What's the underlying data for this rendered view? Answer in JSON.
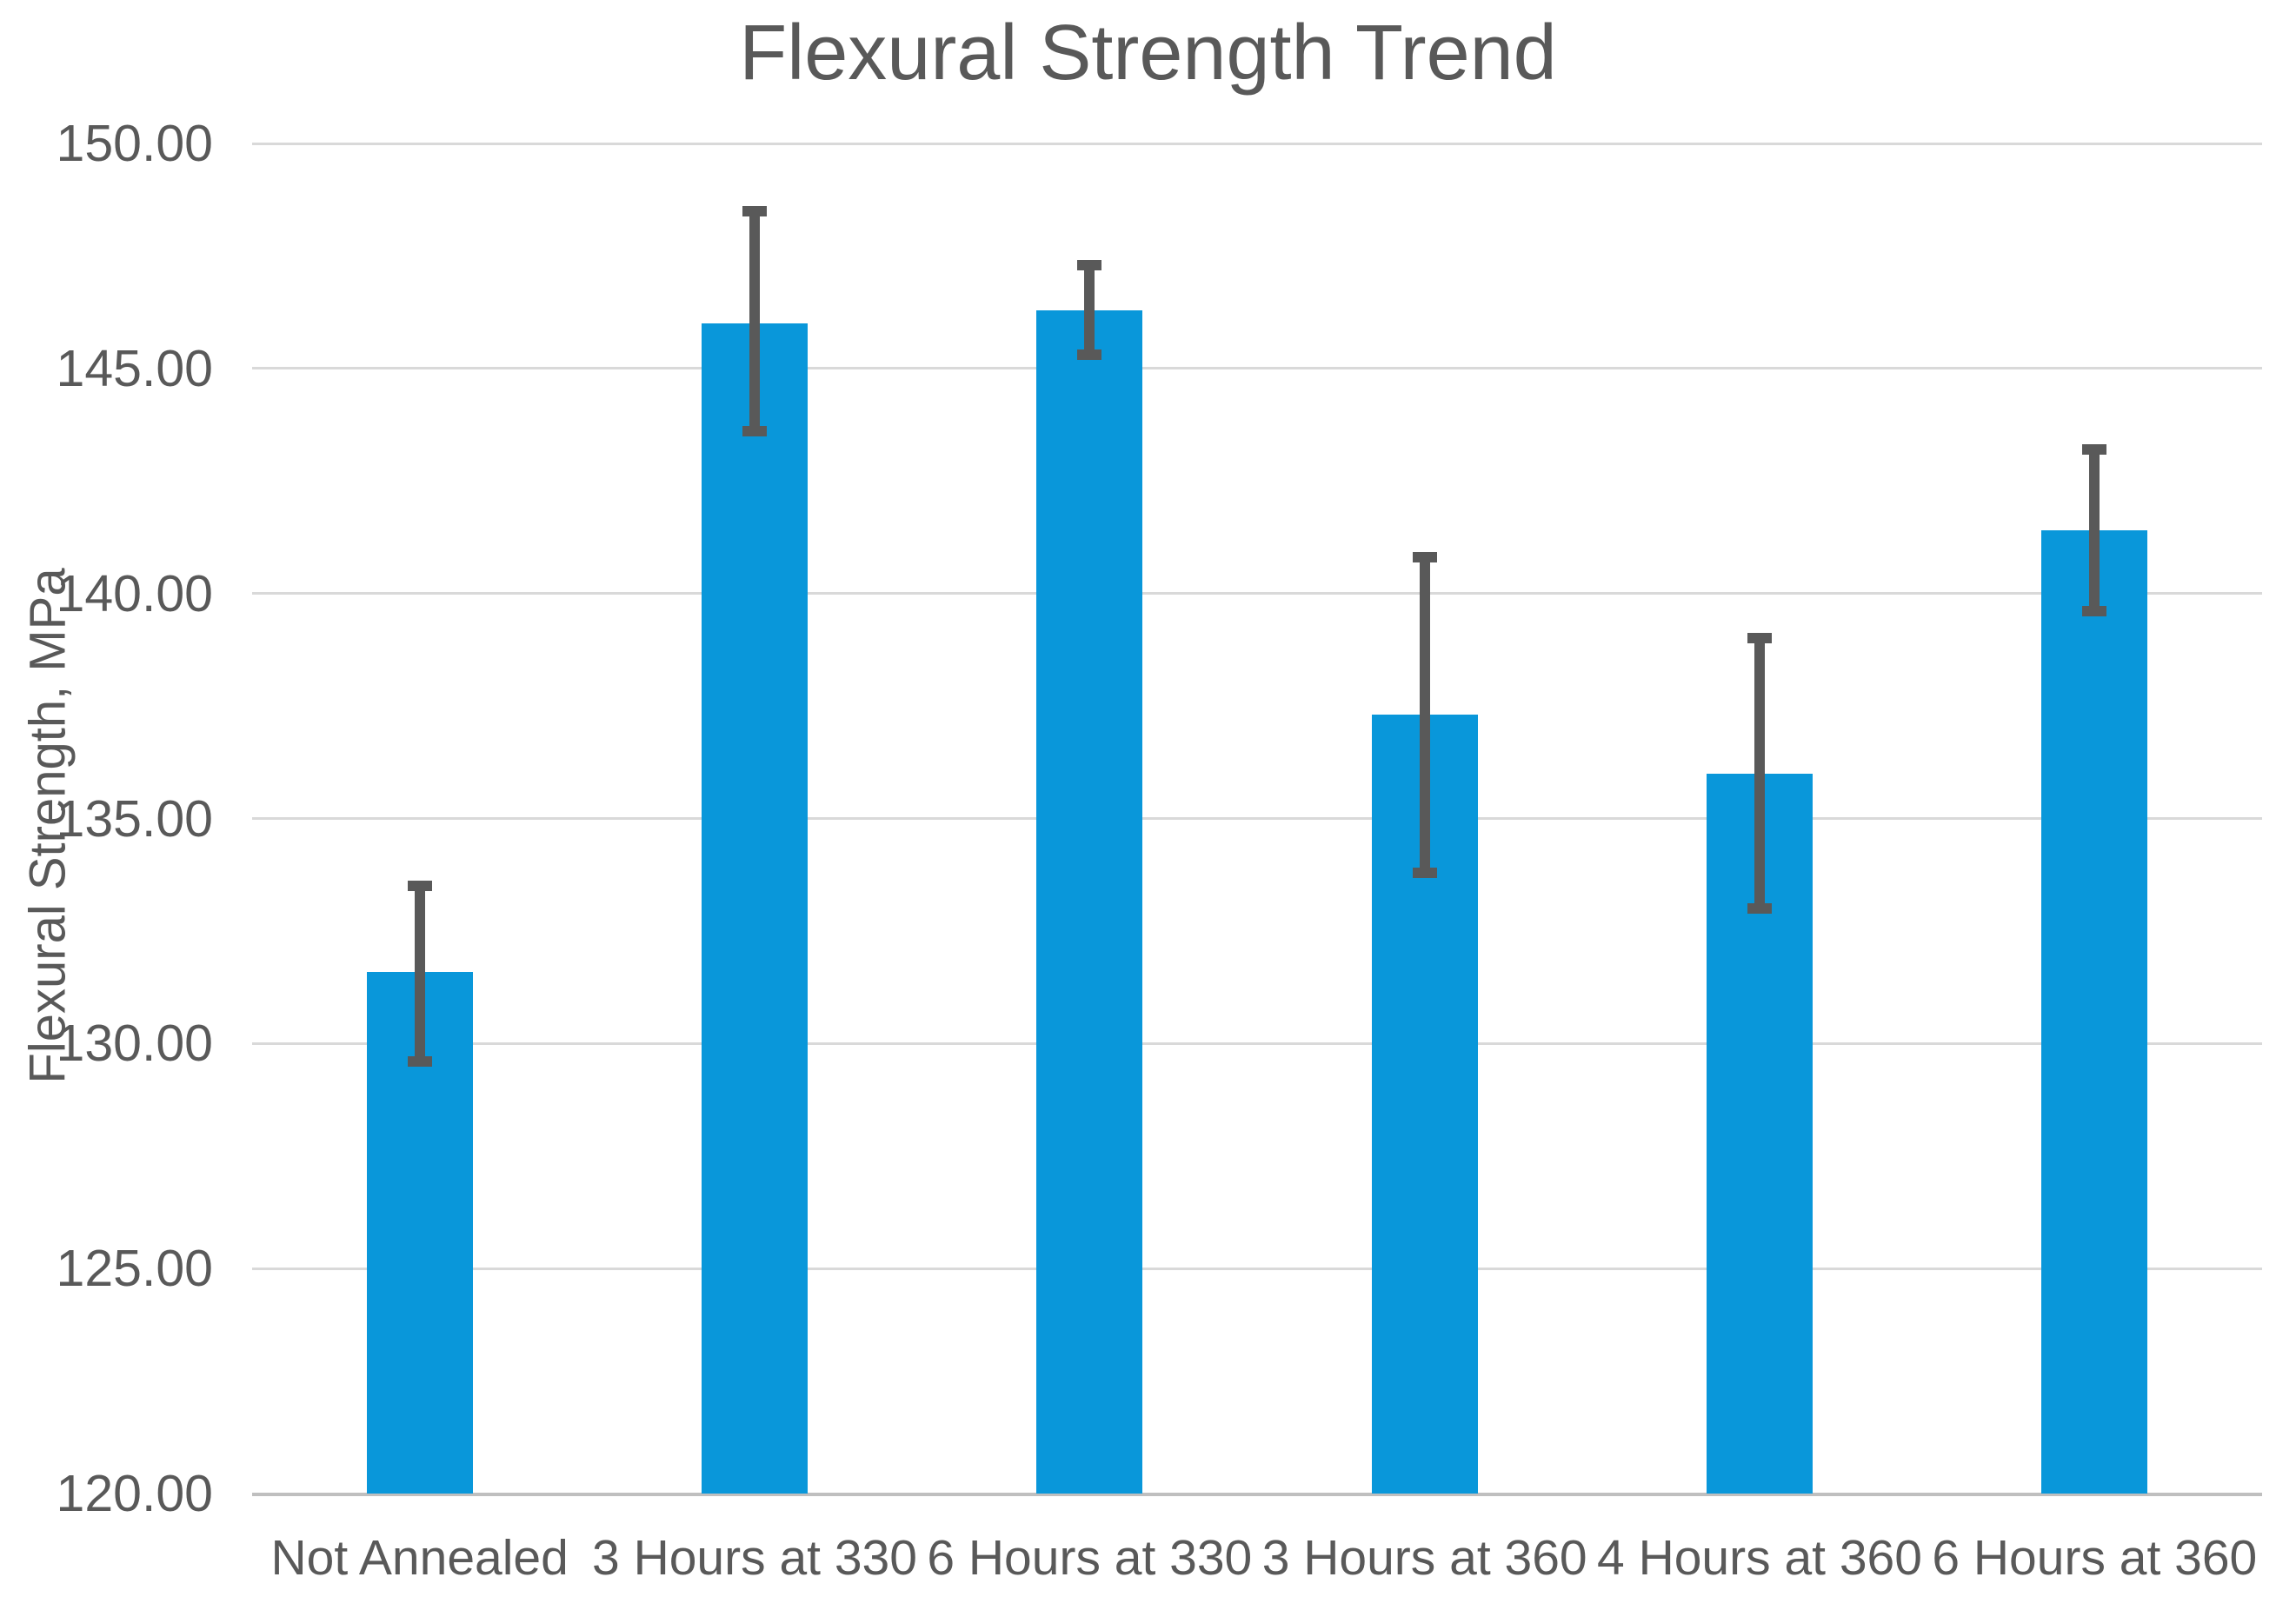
{
  "chart_data": {
    "type": "bar",
    "title": "Flexural Strength Trend",
    "ylabel": "Flexural Strength, MPa",
    "xlabel": "",
    "categories": [
      "Not Annealed",
      "3 Hours at 330",
      "6 Hours at 330",
      "3 Hours at 360",
      "4 Hours at 360",
      "6 Hours at 360"
    ],
    "series": [
      {
        "name": "Flexural Strength, MPa",
        "values": [
          131.6,
          146.0,
          146.3,
          137.3,
          136.0,
          141.4
        ],
        "error_high": [
          133.5,
          148.5,
          147.3,
          140.8,
          139.0,
          143.2
        ],
        "error_low": [
          129.6,
          143.6,
          145.3,
          133.8,
          133.0,
          139.6
        ]
      }
    ],
    "ylim": [
      120,
      150
    ],
    "ytick_interval": 5,
    "ytick_labels": [
      "150.00",
      "145.00",
      "140.00",
      "135.00",
      "130.00",
      "125.00",
      "120.00"
    ],
    "grid": true,
    "legend": false,
    "colors": {
      "bar": "#0997DA",
      "error_bar": "#595959",
      "gridline": "#D9D9D9",
      "axis_line": "#BFBFBF",
      "text": "#595959"
    }
  }
}
